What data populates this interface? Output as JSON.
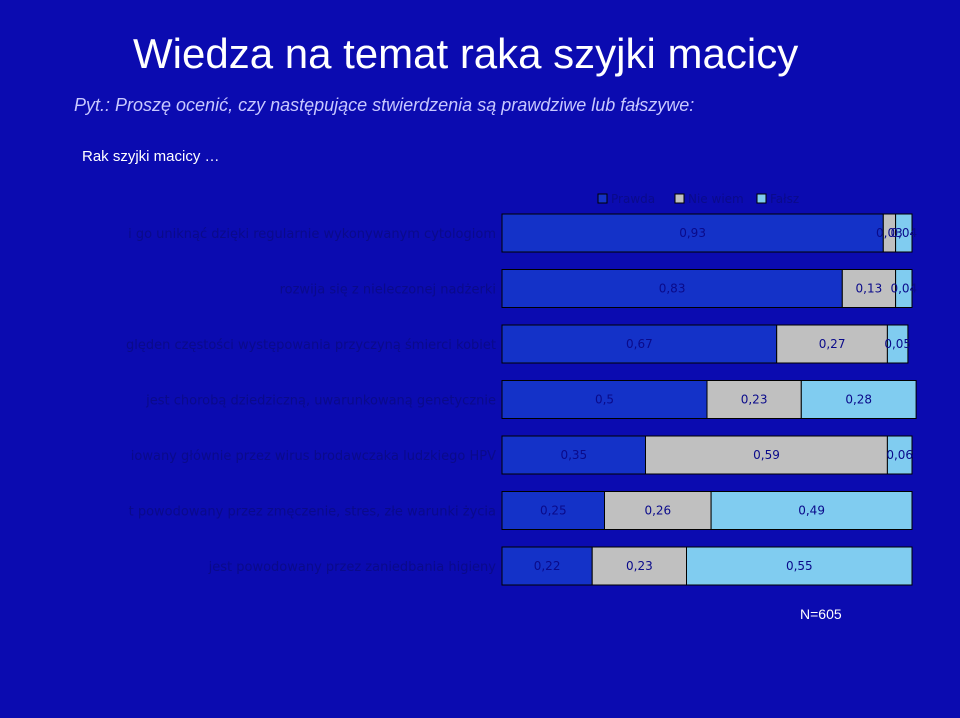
{
  "slide": {
    "title": "Wiedza na temat raka szyjki macicy",
    "subtitle": "Pyt.: Proszę ocenić, czy następujące stwierdzenia są prawdziwe lub fałszywe:",
    "subhead": "Rak szyjki macicy …",
    "footnote": "N=605"
  },
  "chart_data": {
    "type": "bar",
    "orientation": "horizontal-stacked-100",
    "categories": [
      "i go uniknąć dzięki regularnie wykonywanym cytologiom",
      "rozwija się z nieleczonej nadżerki",
      "ględen częstości występowania przyczyną śmierci kobiet",
      "jest chorobą dziedziczną, uwarunkowaną genetycznie",
      "iowany głównie przez wirus brodawczaka ludzkiego HPV",
      "t powodowany przez zmęczenie, stres, złe warunki życia",
      "jest powodowany przez zaniedbania higieny"
    ],
    "series": [
      {
        "name": "Prawda",
        "color": "#1432c8",
        "values": [
          0.93,
          0.83,
          0.67,
          0.5,
          0.35,
          0.25,
          0.22
        ],
        "labels": [
          "0,93",
          "0,83",
          "0,67",
          "0,5",
          "0,35",
          "0,25",
          "0,22"
        ]
      },
      {
        "name": "Nie wiem",
        "color": "#c0c0c0",
        "values": [
          0.03,
          0.13,
          0.27,
          0.23,
          0.59,
          0.26,
          0.23
        ],
        "labels": [
          "0,03",
          "0,13",
          "0,27",
          "0,23",
          "0,59",
          "0,26",
          "0,23"
        ]
      },
      {
        "name": "Fałsz",
        "color": "#80ccf0",
        "values": [
          0.04,
          0.04,
          0.05,
          0.28,
          0.06,
          0.49,
          0.55
        ],
        "labels": [
          "0,04",
          "0,04",
          "0,05",
          "0,28",
          "0,06",
          "0,49",
          "0,55"
        ]
      }
    ],
    "xlim": [
      0,
      1
    ],
    "legend_position": "top-right",
    "grid": false
  }
}
